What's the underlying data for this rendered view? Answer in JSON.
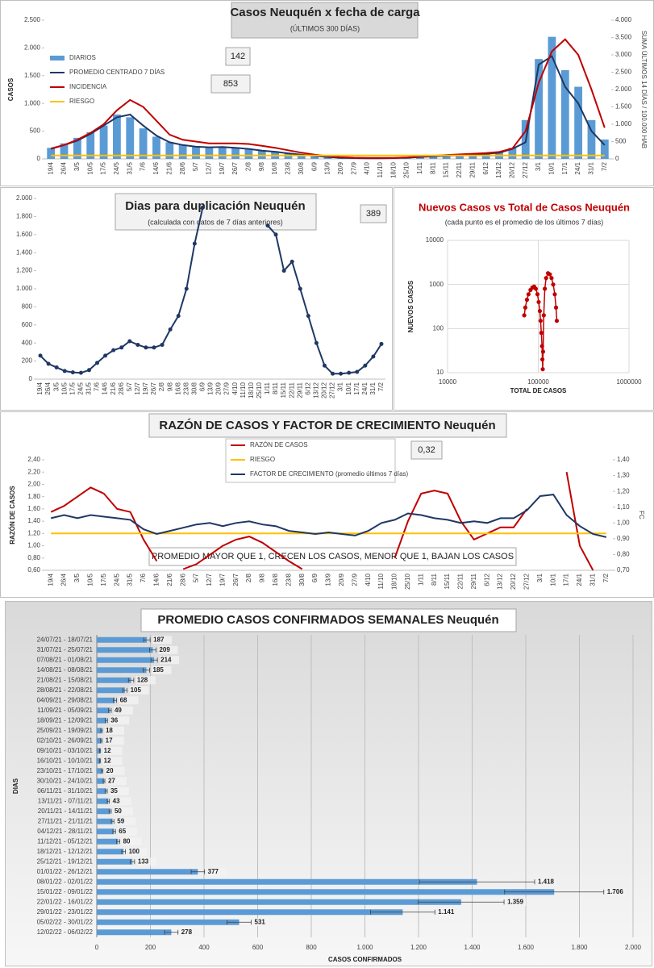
{
  "chart_data": [
    {
      "type": "bar",
      "title": "Casos Neuquén x fecha de carga",
      "subtitle": "(ÚLTIMOS 300 DÍAS)",
      "ylabel": "CASOS",
      "y2label": "SUMA ÚLTIMOS 14 DÍAS / 100.000 HAB",
      "annotations": [
        "142",
        "853"
      ],
      "legend": "upper left",
      "categories": [
        "19/4",
        "26/4",
        "3/5",
        "10/5",
        "17/5",
        "24/5",
        "31/5",
        "7/6",
        "14/6",
        "21/6",
        "28/6",
        "5/7",
        "12/7",
        "19/7",
        "26/7",
        "2/8",
        "9/8",
        "16/8",
        "23/8",
        "30/8",
        "6/9",
        "13/9",
        "20/9",
        "27/9",
        "4/10",
        "11/10",
        "18/10",
        "25/10",
        "1/11",
        "8/11",
        "15/11",
        "22/11",
        "29/11",
        "6/12",
        "13/12",
        "20/12",
        "27/12",
        "3/1",
        "10/1",
        "17/1",
        "24/1",
        "31/1",
        "7/2"
      ],
      "series": [
        {
          "name": "DIARIOS",
          "type": "bar",
          "color": "#5b9bd5",
          "values": [
            200,
            280,
            380,
            480,
            600,
            800,
            750,
            550,
            400,
            300,
            250,
            220,
            200,
            220,
            210,
            180,
            150,
            140,
            110,
            80,
            60,
            40,
            25,
            15,
            15,
            12,
            15,
            25,
            35,
            45,
            55,
            70,
            75,
            90,
            120,
            200,
            700,
            1800,
            2200,
            1600,
            1300,
            700,
            350
          ]
        },
        {
          "name": "PROMEDIO CENTRADO 7 DÍAS",
          "type": "line",
          "color": "#1f3864",
          "values": [
            180,
            250,
            330,
            450,
            600,
            750,
            800,
            600,
            420,
            300,
            250,
            220,
            210,
            215,
            200,
            180,
            150,
            130,
            100,
            75,
            55,
            35,
            20,
            15,
            12,
            12,
            15,
            22,
            35,
            45,
            55,
            65,
            75,
            90,
            110,
            180,
            300,
            1700,
            1850,
            1300,
            1000,
            500,
            250
          ]
        },
        {
          "name": "INCIDENCIA",
          "type": "line",
          "axis": "y2",
          "color": "#c00000",
          "values": [
            300,
            400,
            550,
            750,
            1000,
            1400,
            1700,
            1500,
            1100,
            700,
            550,
            500,
            450,
            450,
            450,
            430,
            380,
            320,
            250,
            180,
            120,
            80,
            50,
            35,
            30,
            28,
            30,
            45,
            70,
            90,
            110,
            130,
            150,
            170,
            200,
            300,
            800,
            2200,
            3100,
            3450,
            3000,
            2000,
            900
          ]
        },
        {
          "name": "RIESGO",
          "type": "line",
          "axis": "y2",
          "color": "#ffc000",
          "values": [
            100,
            100,
            100,
            100,
            100,
            100,
            100,
            100,
            100,
            100,
            100,
            100,
            100,
            100,
            100,
            100,
            100,
            100,
            100,
            100,
            100,
            100,
            100,
            100,
            100,
            100,
            100,
            100,
            100,
            100,
            100,
            100,
            100,
            100,
            100,
            100,
            100,
            100,
            100,
            100,
            100,
            100,
            100
          ]
        }
      ],
      "ylim": [
        0,
        2500
      ],
      "yticks": [
        0,
        500,
        {
          "value": 1000,
          "label": "1.000"
        },
        {
          "value": 1500,
          "label": "1.500"
        },
        {
          "value": 2000,
          "label": "2.000"
        },
        {
          "value": 2500,
          "label": "2.500"
        }
      ],
      "y2lim": [
        0,
        4000
      ],
      "y2ticks": [
        0,
        500,
        {
          "value": 1000,
          "label": "1.000"
        },
        {
          "value": 1500,
          "label": "1.500"
        },
        {
          "value": 2000,
          "label": "2.000"
        },
        {
          "value": 2500,
          "label": "2.500"
        },
        {
          "value": 3000,
          "label": "3.000"
        },
        {
          "value": 3500,
          "label": "3.500"
        },
        {
          "value": 4000,
          "label": "4.000"
        }
      ]
    },
    {
      "type": "line",
      "title": "Dias para duplicación Neuquén",
      "subtitle": "(calculada con datos de 7 días anteriores)",
      "annotations": [
        "389"
      ],
      "categories": [
        "19/4",
        "26/4",
        "3/5",
        "10/5",
        "17/5",
        "24/5",
        "31/5",
        "7/6",
        "14/6",
        "21/6",
        "28/6",
        "5/7",
        "12/7",
        "19/7",
        "26/7",
        "2/8",
        "9/8",
        "16/8",
        "23/8",
        "30/8",
        "6/9",
        "13/9",
        "20/9",
        "27/9",
        "4/10",
        "11/10",
        "18/10",
        "25/10",
        "1/11",
        "8/11",
        "15/11",
        "22/11",
        "29/11",
        "6/12",
        "13/12",
        "20/12",
        "27/12",
        "3/1",
        "10/1",
        "17/1",
        "24/1",
        "31/1",
        "7/2"
      ],
      "series": [
        {
          "name": "Dias para duplicación",
          "color": "#1f3864",
          "markers": true,
          "values": [
            260,
            170,
            130,
            90,
            75,
            70,
            100,
            180,
            260,
            320,
            350,
            420,
            380,
            350,
            350,
            380,
            550,
            700,
            1000,
            1500,
            1900,
            null,
            null,
            null,
            null,
            null,
            null,
            null,
            1700,
            1600,
            1200,
            1300,
            1000,
            700,
            400,
            150,
            60,
            60,
            70,
            80,
            150,
            250,
            389
          ]
        }
      ],
      "ylim": [
        0,
        2000
      ],
      "yticks": [
        0,
        200,
        400,
        600,
        800,
        {
          "value": 1000,
          "label": "1.000"
        },
        {
          "value": 1200,
          "label": "1.200"
        },
        {
          "value": 1400,
          "label": "1.400"
        },
        {
          "value": 1600,
          "label": "1.600"
        },
        {
          "value": 1800,
          "label": "1.800"
        },
        {
          "value": 2000,
          "label": "2.000"
        }
      ]
    },
    {
      "type": "scatter",
      "title": "Nuevos Casos vs Total de Casos Neuquén",
      "subtitle": "(cada punto es el promedio de los últimos 7 días)",
      "xlabel": "TOTAL DE CASOS",
      "ylabel": "NUEVOS CASOS",
      "xscale": "log",
      "yscale": "log",
      "color": "#c00000",
      "x": [
        70000,
        72000,
        75000,
        78000,
        82000,
        86000,
        90000,
        94000,
        98000,
        101000,
        104000,
        106000,
        108000,
        110000,
        111000,
        112000,
        113000,
        115000,
        118000,
        122000,
        128000,
        134000,
        140000,
        146000,
        152000,
        157000,
        160000
      ],
      "y": [
        200,
        300,
        450,
        600,
        750,
        850,
        900,
        800,
        600,
        400,
        250,
        150,
        80,
        40,
        20,
        12,
        30,
        200,
        800,
        1400,
        1800,
        1700,
        1400,
        1000,
        600,
        300,
        150
      ],
      "xlim": [
        10000,
        1000000
      ],
      "xticks": [
        10000,
        100000,
        1000000
      ],
      "ylim": [
        10,
        10000
      ],
      "yticks": [
        10,
        100,
        1000,
        10000
      ]
    },
    {
      "type": "line",
      "title": "RAZÓN DE CASOS Y FACTOR DE CRECIMIENTO Neuquén",
      "ylabel": "RAZÓN DE CASOS",
      "y2label": "FC",
      "annotations": [
        "0,32",
        "PROMEDIO MAYOR QUE 1, CRECEN LOS CASOS, MENOR QUE 1, BAJAN LOS CASOS"
      ],
      "legend": "upper center",
      "categories": [
        "19/4",
        "26/4",
        "3/5",
        "10/5",
        "17/5",
        "24/5",
        "31/5",
        "7/6",
        "14/6",
        "21/6",
        "28/6",
        "5/7",
        "12/7",
        "19/7",
        "26/7",
        "2/8",
        "9/8",
        "16/8",
        "23/8",
        "30/8",
        "6/9",
        "13/9",
        "20/9",
        "27/9",
        "4/10",
        "11/10",
        "18/10",
        "25/10",
        "1/11",
        "8/11",
        "15/11",
        "22/11",
        "29/11",
        "6/12",
        "13/12",
        "20/12",
        "27/12",
        "3/1",
        "10/1",
        "17/1",
        "24/1",
        "31/1",
        "7/2"
      ],
      "series": [
        {
          "name": "RAZÓN DE CASOS",
          "color": "#c00000",
          "values": [
            1.55,
            1.65,
            1.8,
            1.95,
            1.85,
            1.6,
            1.55,
            1.1,
            0.75,
            null,
            0.62,
            0.7,
            0.85,
            1.0,
            1.1,
            1.15,
            1.05,
            0.9,
            0.75,
            0.62,
            null,
            null,
            null,
            null,
            null,
            null,
            0.8,
            1.4,
            1.85,
            1.9,
            1.85,
            1.4,
            1.1,
            1.2,
            1.3,
            1.3,
            1.6,
            null,
            null,
            2.2,
            1.0,
            0.6,
            null
          ]
        },
        {
          "name": "RIESGO",
          "color": "#ffc000",
          "values": [
            1.2,
            1.2,
            1.2,
            1.2,
            1.2,
            1.2,
            1.2,
            1.2,
            1.2,
            1.2,
            1.2,
            1.2,
            1.2,
            1.2,
            1.2,
            1.2,
            1.2,
            1.2,
            1.2,
            1.2,
            1.2,
            1.2,
            1.2,
            1.2,
            1.2,
            1.2,
            1.2,
            1.2,
            1.2,
            1.2,
            1.2,
            1.2,
            1.2,
            1.2,
            1.2,
            1.2,
            1.2,
            1.2,
            1.2,
            1.2,
            1.2,
            1.2,
            1.2
          ]
        },
        {
          "name": "FACTOR DE CRECIMIENTO (promedio últimos 7 días)",
          "axis": "y2",
          "color": "#1f3864",
          "values": [
            1.03,
            1.05,
            1.03,
            1.05,
            1.04,
            1.03,
            1.02,
            0.96,
            0.93,
            0.95,
            0.97,
            0.99,
            1.0,
            0.98,
            1.0,
            1.01,
            0.99,
            0.98,
            0.95,
            0.94,
            0.93,
            0.94,
            0.93,
            0.92,
            0.95,
            1.0,
            1.02,
            1.06,
            1.05,
            1.03,
            1.02,
            1.0,
            1.01,
            1.0,
            1.03,
            1.03,
            1.08,
            1.17,
            1.18,
            1.05,
            0.98,
            0.93,
            0.91
          ]
        }
      ],
      "ylim": [
        0.6,
        2.4
      ],
      "yticks": [
        {
          "value": 0.6,
          "label": "0,60"
        },
        {
          "value": 0.8,
          "label": "0,80"
        },
        {
          "value": 1.0,
          "label": "1,00"
        },
        {
          "value": 1.2,
          "label": "1,20"
        },
        {
          "value": 1.4,
          "label": "1,40"
        },
        {
          "value": 1.6,
          "label": "1,60"
        },
        {
          "value": 1.8,
          "label": "1,80"
        },
        {
          "value": 2.0,
          "label": "2,00"
        },
        {
          "value": 2.2,
          "label": "2,20"
        },
        {
          "value": 2.4,
          "label": "2,40"
        }
      ],
      "y2lim": [
        0.7,
        1.4
      ],
      "y2ticks": [
        {
          "value": 0.7,
          "label": "0,70"
        },
        {
          "value": 0.8,
          "label": "0,80"
        },
        {
          "value": 0.9,
          "label": "0,90"
        },
        {
          "value": 1.0,
          "label": "1,00"
        },
        {
          "value": 1.1,
          "label": "1,10"
        },
        {
          "value": 1.2,
          "label": "1,20"
        },
        {
          "value": 1.3,
          "label": "1,30"
        },
        {
          "value": 1.4,
          "label": "1,40"
        }
      ]
    },
    {
      "type": "hbar",
      "title": "PROMEDIO CASOS CONFIRMADOS SEMANALES Neuquén",
      "xlabel": "CASOS CONFIRMADOS",
      "ylabel": "DIAS",
      "color": "#5b9bd5",
      "grid": true,
      "categories": [
        "24/07/21 - 18/07/21",
        "31/07/21 - 25/07/21",
        "07/08/21 - 01/08/21",
        "14/08/21 - 08/08/21",
        "21/08/21 - 15/08/21",
        "28/08/21 - 22/08/21",
        "04/09/21 - 29/08/21",
        "11/09/21 - 05/09/21",
        "18/09/21 - 12/09/21",
        "25/09/21 - 19/09/21",
        "02/10/21 - 26/09/21",
        "09/10/21 - 03/10/21",
        "16/10/21 - 10/10/21",
        "23/10/21 - 17/10/21",
        "30/10/21 - 24/10/21",
        "06/11/21 - 31/10/21",
        "13/11/21 - 07/11/21",
        "20/11/21 - 14/11/21",
        "27/11/21 - 21/11/21",
        "04/12/21 - 28/11/21",
        "11/12/21 - 05/12/21",
        "18/12/21 - 12/12/21",
        "25/12/21 - 19/12/21",
        "01/01/22 - 26/12/21",
        "08/01/22 - 02/01/22",
        "15/01/22 - 09/01/22",
        "22/01/22 - 16/01/22",
        "29/01/22 - 23/01/22",
        "05/02/22 - 30/01/22",
        "12/02/22 - 06/02/22"
      ],
      "values": [
        187,
        209,
        214,
        185,
        128,
        105,
        68,
        49,
        36,
        18,
        17,
        12,
        12,
        20,
        27,
        35,
        43,
        50,
        59,
        65,
        80,
        100,
        133,
        377,
        1418,
        1706,
        1359,
        1141,
        531,
        278
      ],
      "value_labels": [
        "187",
        "209",
        "214",
        "185",
        "128",
        "105",
        "68",
        "49",
        "36",
        "18",
        "17",
        "12",
        "12",
        "20",
        "27",
        "35",
        "43",
        "50",
        "59",
        "65",
        "80",
        "100",
        "133",
        "377",
        "1.418",
        "1.706",
        "1.359",
        "1.141",
        "531",
        "278"
      ],
      "errors": [
        12,
        12,
        12,
        12,
        10,
        8,
        6,
        5,
        4,
        3,
        3,
        2,
        2,
        3,
        3,
        4,
        4,
        4,
        5,
        5,
        6,
        7,
        8,
        25,
        215,
        185,
        160,
        120,
        45,
        25
      ],
      "xlim": [
        0,
        2000
      ],
      "xticks": [
        0,
        200,
        400,
        600,
        800,
        {
          "value": 1000,
          "label": "1.000"
        },
        {
          "value": 1200,
          "label": "1.200"
        },
        {
          "value": 1400,
          "label": "1.400"
        },
        {
          "value": 1600,
          "label": "1.600"
        },
        {
          "value": 1800,
          "label": "1.800"
        },
        {
          "value": 2000,
          "label": "2.000"
        }
      ]
    }
  ]
}
